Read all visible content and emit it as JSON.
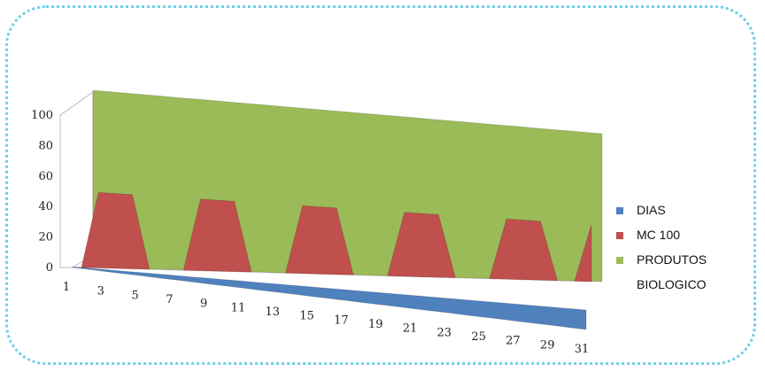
{
  "chart_data": {
    "type": "area",
    "style": "3d",
    "title": "",
    "xlabel": "",
    "ylabel": "",
    "ylim": [
      0,
      100
    ],
    "yticks": [
      0,
      20,
      40,
      60,
      80,
      100
    ],
    "x": [
      1,
      2,
      3,
      4,
      5,
      6,
      7,
      8,
      9,
      10,
      11,
      12,
      13,
      14,
      15,
      16,
      17,
      18,
      19,
      20,
      21,
      22,
      23,
      24,
      25,
      26,
      27,
      28,
      29,
      30,
      31
    ],
    "xtick_labels": [
      "1",
      "3",
      "5",
      "7",
      "9",
      "11",
      "13",
      "15",
      "17",
      "19",
      "21",
      "23",
      "25",
      "27",
      "29",
      "31"
    ],
    "grid": false,
    "legend_position": "right",
    "series": [
      {
        "name": "DIAS",
        "color": "#4f81bd",
        "values": [
          1,
          2,
          3,
          4,
          5,
          6,
          7,
          8,
          9,
          10,
          11,
          12,
          13,
          14,
          15,
          16,
          17,
          18,
          19,
          20,
          21,
          22,
          23,
          24,
          25,
          26,
          27,
          28,
          29,
          30,
          31
        ]
      },
      {
        "name": "MC 100",
        "color": "#c0504d",
        "values": [
          0,
          50,
          50,
          50,
          0,
          0,
          0,
          50,
          50,
          50,
          0,
          0,
          0,
          50,
          50,
          50,
          0,
          0,
          0,
          50,
          50,
          50,
          0,
          0,
          0,
          50,
          50,
          50,
          0,
          0,
          50
        ]
      },
      {
        "name": "PRODUTOS BIOLOGICO",
        "name_lines": [
          "PRODUTOS",
          "BIOLOGICO"
        ],
        "color": "#9bbb59",
        "values": [
          100,
          100,
          100,
          100,
          100,
          100,
          100,
          100,
          100,
          100,
          100,
          100,
          100,
          100,
          100,
          100,
          100,
          100,
          100,
          100,
          100,
          100,
          100,
          100,
          100,
          100,
          100,
          100,
          100,
          100,
          100
        ]
      }
    ]
  }
}
